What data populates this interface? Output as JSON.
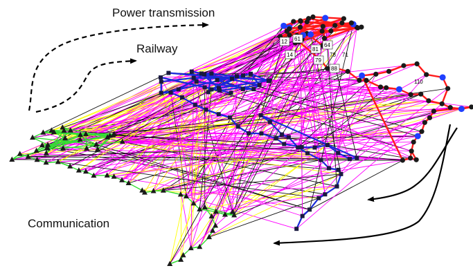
{
  "layers": {
    "power": {
      "label": "Power transmission",
      "edge_color": "#ff1a1a",
      "node_color": "#1a1a1a",
      "hub_color": "#1f3fff"
    },
    "railway": {
      "label": "Railway",
      "edge_color": "#1a2bd9",
      "node_color": "#1a1a40"
    },
    "communication": {
      "label": "Communication",
      "edge_color": "#33dd33",
      "node_color": "#1a1a1a"
    }
  },
  "interlinks": {
    "primary_color": "#ff00ff",
    "secondary_color": "#ffff00",
    "tertiary_color": "#111111"
  },
  "node_tags": [
    {
      "id": "n12",
      "text": "12",
      "boxed": true
    },
    {
      "id": "n61",
      "text": "61",
      "boxed": true
    },
    {
      "id": "n14",
      "text": "14",
      "boxed": true
    },
    {
      "id": "n81",
      "text": "81",
      "boxed": true
    },
    {
      "id": "n64",
      "text": "64",
      "boxed": true
    },
    {
      "id": "n78",
      "text": "78",
      "boxed": false
    },
    {
      "id": "n71",
      "text": "71",
      "boxed": false
    },
    {
      "id": "n79",
      "text": "79",
      "boxed": true
    },
    {
      "id": "n88",
      "text": "88",
      "boxed": true
    },
    {
      "id": "n110",
      "text": "110",
      "boxed": false
    }
  ]
}
